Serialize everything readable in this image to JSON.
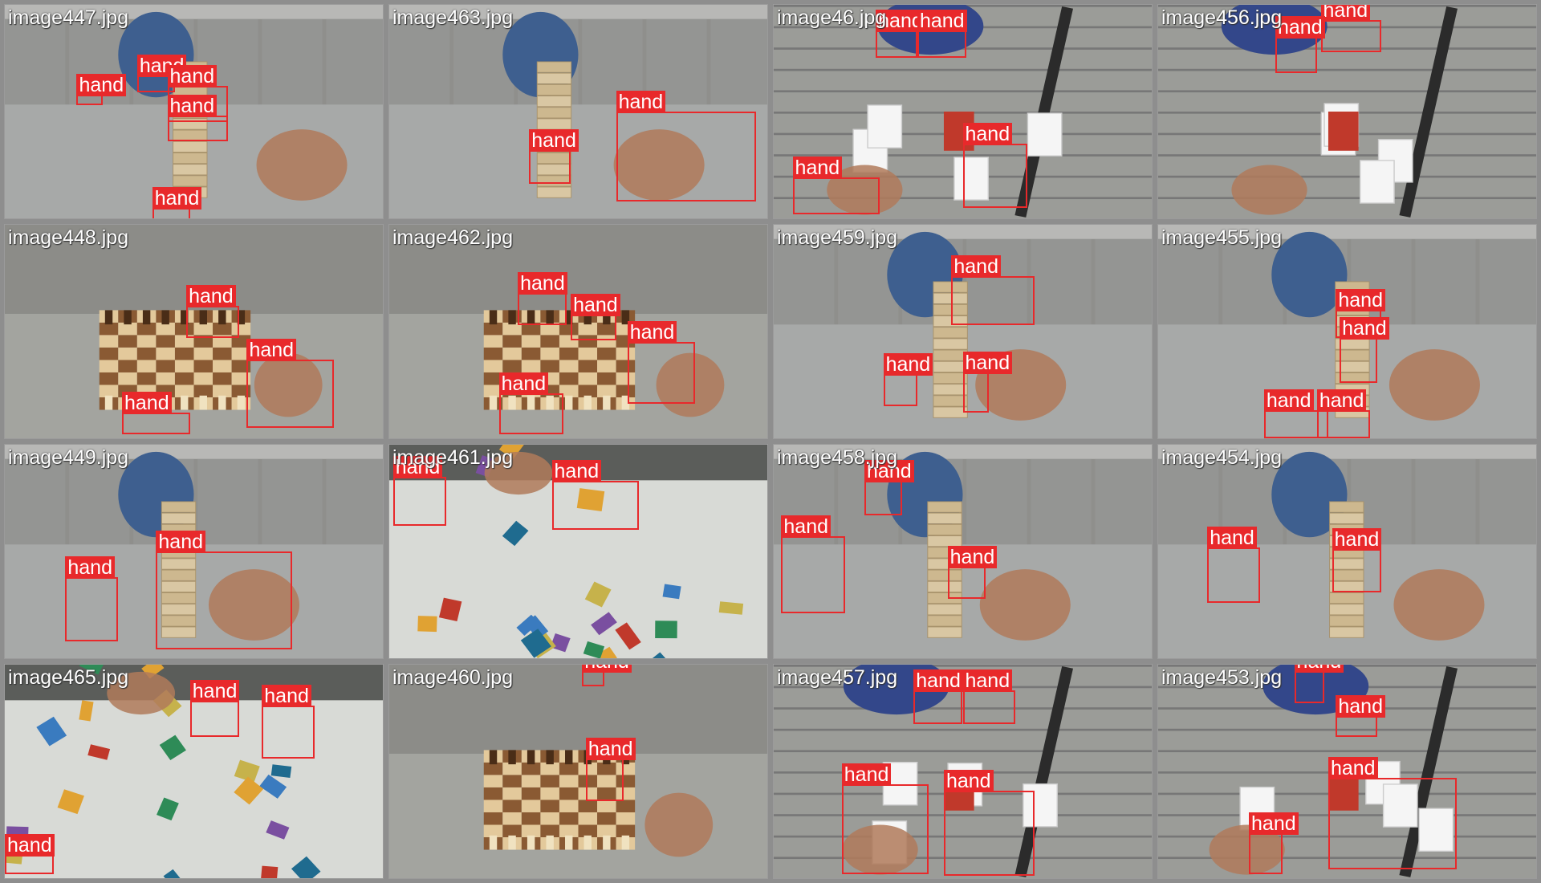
{
  "colors": {
    "box": "#e8292b",
    "label_text": "#ffffff",
    "background": "#8e8e8e"
  },
  "tiles": [
    {
      "filename": "image447.jpg",
      "scene": "jenga",
      "boxes": [
        {
          "label": "hand"
        },
        {
          "label": "hand"
        },
        {
          "label": "hand"
        },
        {
          "label": "hand"
        },
        {
          "label": "hand"
        }
      ]
    },
    {
      "filename": "image463.jpg",
      "scene": "jenga",
      "boxes": [
        {
          "label": "hand"
        },
        {
          "label": "hand"
        }
      ]
    },
    {
      "filename": "image46.jpg",
      "scene": "cards",
      "boxes": [
        {
          "label": "hand"
        },
        {
          "label": "hand"
        },
        {
          "label": "hand"
        },
        {
          "label": "hand"
        }
      ]
    },
    {
      "filename": "image456.jpg",
      "scene": "cards",
      "boxes": [
        {
          "label": "hand"
        },
        {
          "label": "hand"
        }
      ]
    },
    {
      "filename": "image448.jpg",
      "scene": "chess",
      "boxes": [
        {
          "label": "hand"
        },
        {
          "label": "hand"
        },
        {
          "label": "hand"
        }
      ]
    },
    {
      "filename": "image462.jpg",
      "scene": "chess",
      "boxes": [
        {
          "label": "hand"
        },
        {
          "label": "hand"
        },
        {
          "label": "hand"
        },
        {
          "label": "hand"
        }
      ]
    },
    {
      "filename": "image459.jpg",
      "scene": "jenga",
      "boxes": [
        {
          "label": "hand"
        },
        {
          "label": "hand"
        },
        {
          "label": "hand"
        }
      ]
    },
    {
      "filename": "image455.jpg",
      "scene": "jenga",
      "boxes": [
        {
          "label": "hand"
        },
        {
          "label": "hand"
        },
        {
          "label": "hand"
        },
        {
          "label": "hand"
        }
      ]
    },
    {
      "filename": "image449.jpg",
      "scene": "jenga",
      "boxes": [
        {
          "label": "hand"
        },
        {
          "label": "hand"
        }
      ]
    },
    {
      "filename": "image461.jpg",
      "scene": "puzzle",
      "boxes": [
        {
          "label": "hand"
        },
        {
          "label": "hand"
        }
      ]
    },
    {
      "filename": "image458.jpg",
      "scene": "jenga",
      "boxes": [
        {
          "label": "hand"
        },
        {
          "label": "hand"
        },
        {
          "label": "hand"
        }
      ]
    },
    {
      "filename": "image454.jpg",
      "scene": "jenga",
      "boxes": [
        {
          "label": "hand"
        },
        {
          "label": "hand"
        }
      ]
    },
    {
      "filename": "image465.jpg",
      "scene": "puzzle",
      "boxes": [
        {
          "label": "hand"
        },
        {
          "label": "hand"
        },
        {
          "label": "hand"
        }
      ]
    },
    {
      "filename": "image460.jpg",
      "scene": "chess",
      "boxes": [
        {
          "label": "hand"
        },
        {
          "label": "hand"
        }
      ]
    },
    {
      "filename": "image457.jpg",
      "scene": "cards",
      "boxes": [
        {
          "label": "hand"
        },
        {
          "label": "hand"
        },
        {
          "label": "hand"
        },
        {
          "label": "hand"
        }
      ]
    },
    {
      "filename": "image453.jpg",
      "scene": "cards",
      "boxes": [
        {
          "label": "hand"
        },
        {
          "label": "hand"
        },
        {
          "label": "hand"
        },
        {
          "label": "hand"
        }
      ]
    }
  ]
}
